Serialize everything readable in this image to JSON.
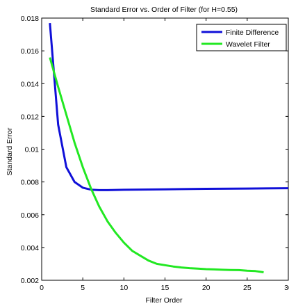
{
  "chart_data": {
    "type": "line",
    "title": "Standard Error vs. Order of Filter (for H=0.55)",
    "xlabel": "Filter Order",
    "ylabel": "Standard Error",
    "xlim": [
      0,
      30
    ],
    "ylim": [
      0.002,
      0.018
    ],
    "x_ticks": [
      0,
      5,
      10,
      15,
      20,
      25,
      30
    ],
    "x_tick_labels": [
      "0",
      "5",
      "10",
      "15",
      "20",
      "25",
      "30"
    ],
    "y_ticks": [
      0.002,
      0.004,
      0.006,
      0.008,
      0.01,
      0.012,
      0.014,
      0.016,
      0.018
    ],
    "y_tick_labels": [
      "0.002",
      "0.004",
      "0.006",
      "0.008",
      "0.01",
      "0.012",
      "0.014",
      "0.016",
      "0.018"
    ],
    "grid": false,
    "legend_position": "top-right",
    "series": [
      {
        "name": "Finite Difference",
        "color": "#1010d8",
        "x": [
          1,
          2,
          3,
          4,
          5,
          6,
          7,
          8,
          10,
          15,
          20,
          25,
          30,
          32
        ],
        "y": [
          0.0177,
          0.0115,
          0.0089,
          0.008,
          0.00765,
          0.00753,
          0.0075,
          0.0075,
          0.00752,
          0.00755,
          0.00758,
          0.0076,
          0.00762,
          0.00762
        ]
      },
      {
        "name": "Wavelet Filter",
        "color": "#22e822",
        "x": [
          1,
          2,
          3,
          4,
          5,
          6,
          7,
          8,
          9,
          10,
          11,
          12,
          13,
          14,
          15,
          16,
          17,
          18,
          19,
          20,
          21,
          22,
          23,
          24,
          25,
          26,
          27
        ],
        "y": [
          0.0156,
          0.0138,
          0.0121,
          0.0104,
          0.0089,
          0.0076,
          0.0065,
          0.0056,
          0.0049,
          0.0043,
          0.0038,
          0.0035,
          0.0032,
          0.003,
          0.00292,
          0.00284,
          0.00278,
          0.00274,
          0.00271,
          0.00268,
          0.00266,
          0.00264,
          0.00263,
          0.00262,
          0.00258,
          0.00256,
          0.00249
        ]
      }
    ]
  }
}
